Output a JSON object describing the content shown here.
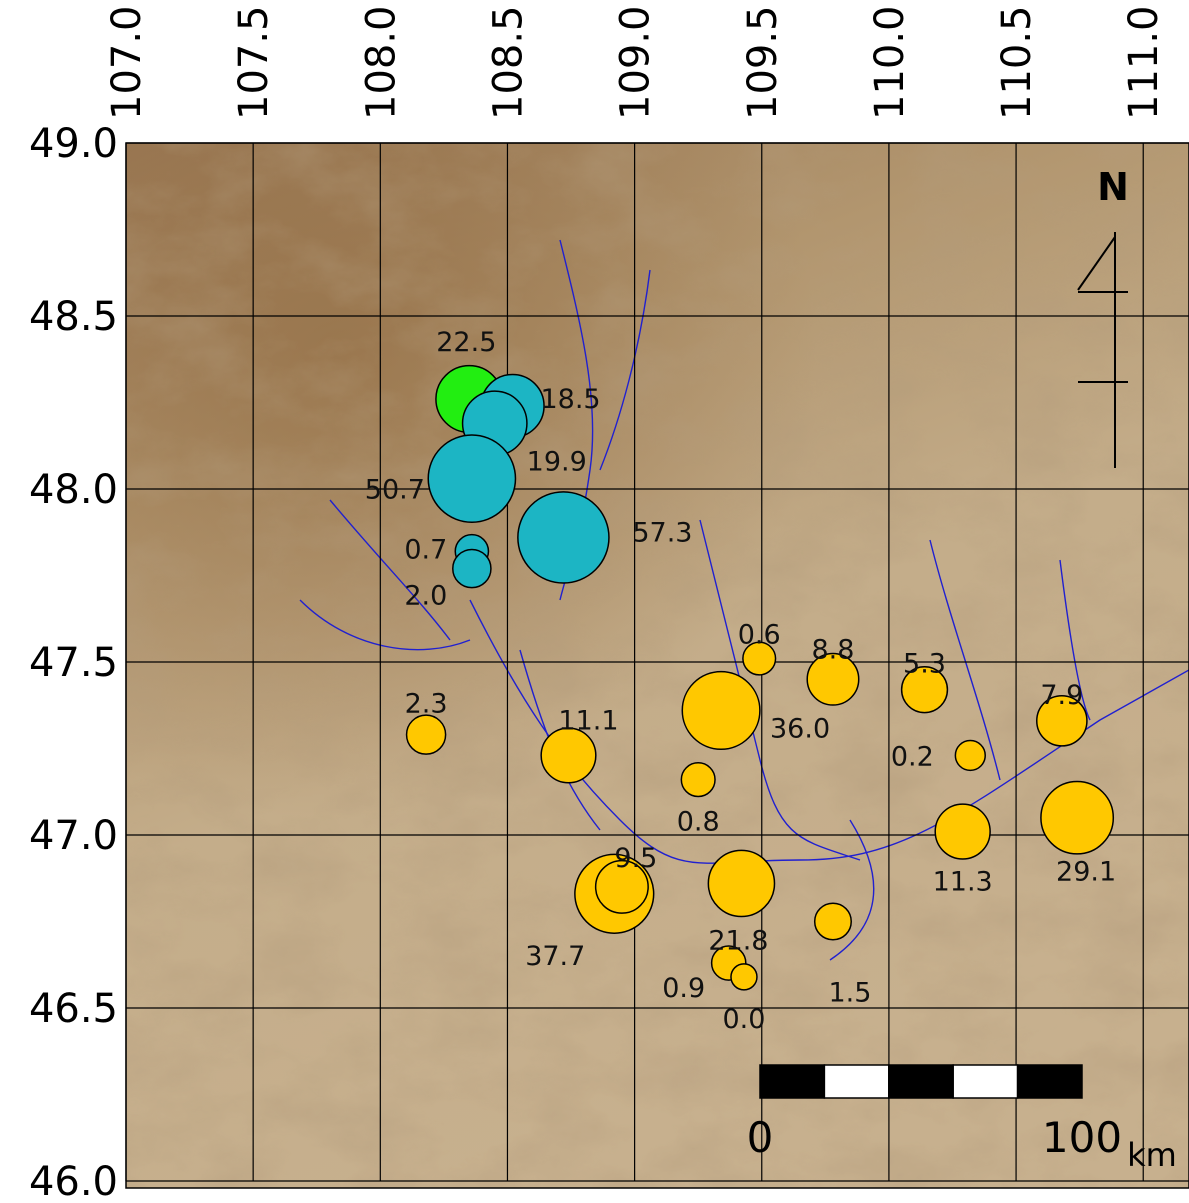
{
  "chart_data": {
    "type": "bubble",
    "xticks": [
      {
        "value": 107,
        "label": "107.0"
      },
      107.5,
      {
        "value": 108,
        "label": "108.0"
      },
      108.5,
      {
        "value": 109,
        "label": "109.0"
      },
      109.5,
      {
        "value": 110,
        "label": "110.0"
      },
      110.5,
      {
        "value": 111,
        "label": "111.0"
      }
    ],
    "yticks": [
      {
        "value": 49,
        "label": "49.0"
      },
      48.5,
      {
        "value": 48,
        "label": "48.0"
      },
      47.5,
      {
        "value": 47,
        "label": "47.0"
      },
      46.5,
      {
        "value": 46,
        "label": "46.0"
      }
    ],
    "xlim": [
      107,
      111.18
    ],
    "ylim": [
      46,
      49
    ],
    "grid": true,
    "series": [
      {
        "color": "#22ee11",
        "x": [
          108.35
        ],
        "y": [
          48.26
        ],
        "values": [
          22.5
        ],
        "value_labels": [
          "22.5"
        ]
      },
      {
        "color": "#1cb5c4",
        "x": [
          108.52,
          108.45,
          108.36,
          108.72,
          108.36,
          108.36
        ],
        "y": [
          48.24,
          48.19,
          48.03,
          47.86,
          47.82,
          47.77
        ],
        "values": [
          18.5,
          19.9,
          50.7,
          57.3,
          0.7,
          2
        ],
        "value_labels": [
          "18.5",
          "19.9",
          "50.7",
          "57.3",
          "0.7",
          "2.0"
        ]
      },
      {
        "color": "#ffc800",
        "x": [
          109.49,
          109.78,
          110.14,
          110.68,
          108.18,
          108.74,
          109.34,
          110.32,
          109.25,
          110.29,
          110.74,
          108.92,
          108.95,
          109.42,
          109.78,
          109.37,
          109.43
        ],
        "y": [
          47.51,
          47.45,
          47.42,
          47.33,
          47.29,
          47.23,
          47.36,
          47.23,
          47.16,
          47.01,
          47.05,
          46.83,
          46.85,
          46.86,
          46.75,
          46.63,
          46.59
        ],
        "values": [
          0.6,
          8.8,
          5.3,
          7.9,
          2.3,
          11.1,
          36,
          0.2,
          0.8,
          11.3,
          29.1,
          37.7,
          9.5,
          21.8,
          1.5,
          0.9,
          0
        ],
        "value_labels": [
          "0.6",
          "8.8",
          "5.3",
          "7.9",
          "2.3",
          "11.1",
          "36.0",
          "0.2",
          "0.8",
          "11.3",
          "29.1",
          "37.7",
          "9.5",
          "21.8",
          "1.5",
          "0.9",
          "0.0"
        ]
      }
    ],
    "north_label": "N",
    "scale_bar": {
      "ticks": [
        0,
        100
      ],
      "unit": "km"
    }
  }
}
